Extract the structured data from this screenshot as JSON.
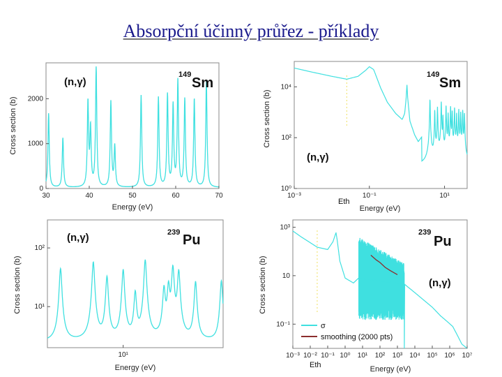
{
  "title": "Absorpční účinný průřez - příklady",
  "colors": {
    "curve": "#3fe0e0",
    "smooth": "#8b2d2d",
    "marker": "#f0e060",
    "title": "#1a1a8c"
  },
  "chart_data": [
    {
      "type": "line",
      "reaction": "(n,γ)",
      "isotope_mass": "149",
      "isotope_symbol": "Sm",
      "xlabel": "Energy (eV)",
      "ylabel": "Cross section (b)",
      "xlim": [
        30,
        70
      ],
      "ylim": [
        0,
        2800
      ],
      "x_ticks": [
        30,
        40,
        50,
        60,
        70
      ],
      "x_tick_labels": [
        "30",
        "40",
        "50",
        "60",
        "70"
      ],
      "y_ticks": [
        0,
        1000,
        2000
      ],
      "y_tick_labels": [
        "0",
        "1000",
        "2000"
      ],
      "resonances": [
        {
          "x": 30.6,
          "y": 1650
        },
        {
          "x": 33.9,
          "y": 1100
        },
        {
          "x": 39.7,
          "y": 1850
        },
        {
          "x": 40.3,
          "y": 1250
        },
        {
          "x": 41.6,
          "y": 2650
        },
        {
          "x": 45.0,
          "y": 1900
        },
        {
          "x": 45.9,
          "y": 900
        },
        {
          "x": 52.0,
          "y": 2050
        },
        {
          "x": 56.0,
          "y": 2000
        },
        {
          "x": 58.1,
          "y": 2050
        },
        {
          "x": 59.4,
          "y": 1800
        },
        {
          "x": 60.5,
          "y": 2350
        },
        {
          "x": 62.1,
          "y": 1950
        },
        {
          "x": 64.3,
          "y": 1950
        },
        {
          "x": 67.1,
          "y": 2350
        }
      ],
      "baseline": 20
    },
    {
      "type": "line",
      "reaction": "(n,γ)",
      "isotope_mass": "149",
      "isotope_symbol": "Sm",
      "xlabel": "Energy (eV)",
      "ylabel": "Cross section (b)",
      "xscale": "log",
      "yscale": "log",
      "xlim": [
        0.001,
        40
      ],
      "ylim": [
        1,
        100000
      ],
      "x_ticks": [
        0.001,
        0.1,
        10
      ],
      "x_tick_labels": [
        "10⁻³",
        "10⁻¹",
        "10¹"
      ],
      "y_ticks": [
        1,
        100,
        10000
      ],
      "y_tick_labels": [
        "10⁰",
        "10²",
        "10⁴"
      ],
      "marker_label": "Eth",
      "marker_x": 0.025,
      "low_energy": [
        {
          "x": 0.001,
          "y": 55000
        },
        {
          "x": 0.003,
          "y": 38000
        },
        {
          "x": 0.01,
          "y": 26000
        },
        {
          "x": 0.025,
          "y": 20000
        },
        {
          "x": 0.05,
          "y": 26000
        },
        {
          "x": 0.08,
          "y": 45000
        },
        {
          "x": 0.1,
          "y": 62000
        },
        {
          "x": 0.13,
          "y": 48000
        },
        {
          "x": 0.2,
          "y": 9000
        },
        {
          "x": 0.3,
          "y": 2500
        },
        {
          "x": 0.5,
          "y": 900
        },
        {
          "x": 0.75,
          "y": 520
        },
        {
          "x": 0.87,
          "y": 900
        },
        {
          "x": 0.95,
          "y": 3500
        },
        {
          "x": 1.0,
          "y": 12000
        },
        {
          "x": 1.05,
          "y": 3500
        },
        {
          "x": 1.2,
          "y": 450
        },
        {
          "x": 1.6,
          "y": 130
        },
        {
          "x": 2.0,
          "y": 70
        },
        {
          "x": 2.5,
          "y": 110
        }
      ],
      "resonances": [
        {
          "x": 4.1,
          "y": 3000
        },
        {
          "x": 5.5,
          "y": 1200
        },
        {
          "x": 6.5,
          "y": 1600
        },
        {
          "x": 8.2,
          "y": 2600
        },
        {
          "x": 9.1,
          "y": 700
        },
        {
          "x": 11.0,
          "y": 1800
        },
        {
          "x": 12.5,
          "y": 900
        },
        {
          "x": 14.5,
          "y": 1700
        },
        {
          "x": 16.0,
          "y": 1100
        },
        {
          "x": 18.5,
          "y": 1500
        },
        {
          "x": 21.0,
          "y": 900
        },
        {
          "x": 24.0,
          "y": 1300
        },
        {
          "x": 27.0,
          "y": 1000
        },
        {
          "x": 30.5,
          "y": 1200
        },
        {
          "x": 34.0,
          "y": 900
        }
      ],
      "background": 8
    },
    {
      "type": "line",
      "reaction": "(n,γ)",
      "isotope_mass": "239",
      "isotope_symbol": "Pu",
      "xlabel": "Energy (eV)",
      "ylabel": "Cross section (b)",
      "xscale": "log",
      "yscale": "log",
      "xlim": [
        5.5,
        22
      ],
      "ylim": [
        2,
        300
      ],
      "x_ticks": [
        10
      ],
      "x_tick_labels": [
        "10¹"
      ],
      "y_ticks": [
        10,
        100
      ],
      "y_tick_labels": [
        "10¹",
        "10²"
      ],
      "resonances": [
        {
          "x": 6.1,
          "y": 42
        },
        {
          "x": 7.9,
          "y": 55
        },
        {
          "x": 8.8,
          "y": 30
        },
        {
          "x": 10.0,
          "y": 40
        },
        {
          "x": 11.0,
          "y": 15
        },
        {
          "x": 11.9,
          "y": 60
        },
        {
          "x": 13.8,
          "y": 18
        },
        {
          "x": 14.3,
          "y": 20
        },
        {
          "x": 14.8,
          "y": 45
        },
        {
          "x": 15.5,
          "y": 38
        },
        {
          "x": 17.7,
          "y": 24
        },
        {
          "x": 21.7,
          "y": 25
        }
      ],
      "background": 2.5
    },
    {
      "type": "line",
      "reaction": "(n,γ)",
      "isotope_mass": "239",
      "isotope_symbol": "Pu",
      "xlabel": "Energy (eV)",
      "ylabel": "Cross section (b)",
      "xscale": "log",
      "yscale": "log",
      "xlim": [
        0.001,
        10000000
      ],
      "ylim": [
        0.01,
        2000
      ],
      "x_ticks": [
        0.001,
        0.01,
        0.1,
        1,
        10,
        100,
        1000,
        10000,
        100000,
        1000000,
        10000000
      ],
      "x_tick_labels": [
        "10⁻³",
        "10⁻²",
        "10⁻¹",
        "10⁰",
        "10¹",
        "10²",
        "10³",
        "10⁴",
        "10⁵",
        "10⁶",
        "10⁷"
      ],
      "y_ticks": [
        0.1,
        10,
        1000
      ],
      "y_tick_labels": [
        "10⁻¹",
        "10",
        "10³"
      ],
      "marker_label": "Eth",
      "marker_x": 0.025,
      "legend": [
        "σ",
        "smoothing (2000 pts)"
      ],
      "legend_position": "bottom-left",
      "low_energy": [
        {
          "x": 0.001,
          "y": 700
        },
        {
          "x": 0.003,
          "y": 400
        },
        {
          "x": 0.01,
          "y": 230
        },
        {
          "x": 0.025,
          "y": 150
        },
        {
          "x": 0.1,
          "y": 120
        },
        {
          "x": 0.2,
          "y": 250
        },
        {
          "x": 0.3,
          "y": 600
        },
        {
          "x": 0.35,
          "y": 300
        },
        {
          "x": 0.5,
          "y": 40
        },
        {
          "x": 1.0,
          "y": 8
        },
        {
          "x": 3.0,
          "y": 5
        },
        {
          "x": 6.0,
          "y": 8
        }
      ],
      "resolved_range": [
        6,
        2500
      ],
      "resolved_band": {
        "low": 0.3,
        "high": 400
      },
      "smoothing": [
        {
          "x": 30,
          "y": 70
        },
        {
          "x": 60,
          "y": 45
        },
        {
          "x": 100,
          "y": 35
        },
        {
          "x": 200,
          "y": 22
        },
        {
          "x": 400,
          "y": 16
        },
        {
          "x": 1000,
          "y": 11
        }
      ],
      "high_energy": [
        {
          "x": 2500,
          "y": 4.5
        },
        {
          "x": 10000,
          "y": 2.0
        },
        {
          "x": 100000,
          "y": 0.5
        },
        {
          "x": 300000,
          "y": 0.22
        },
        {
          "x": 800000,
          "y": 0.12
        },
        {
          "x": 1500000,
          "y": 0.08
        },
        {
          "x": 2500000,
          "y": 0.04
        },
        {
          "x": 5000000,
          "y": 0.015
        },
        {
          "x": 10000000,
          "y": 0.01
        }
      ]
    }
  ]
}
